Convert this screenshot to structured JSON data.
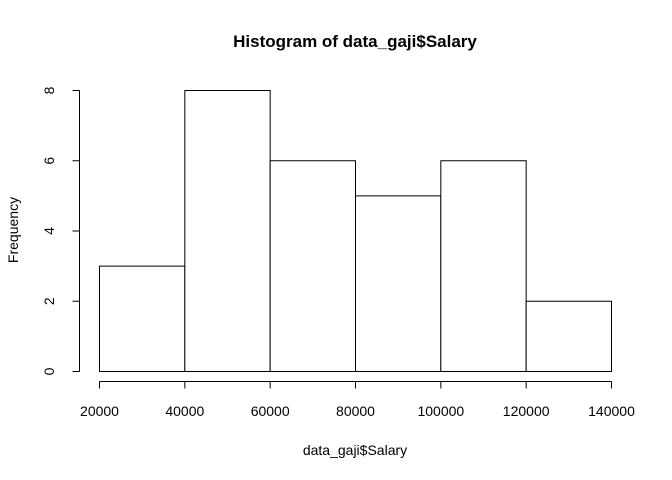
{
  "chart_data": {
    "type": "bar",
    "title": "Histogram of data_gaji$Salary",
    "xlabel": "data_gaji$Salary",
    "ylabel": "Frequency",
    "bins": [
      {
        "start": 20000,
        "end": 40000,
        "count": 3
      },
      {
        "start": 40000,
        "end": 60000,
        "count": 8
      },
      {
        "start": 60000,
        "end": 80000,
        "count": 6
      },
      {
        "start": 80000,
        "end": 100000,
        "count": 5
      },
      {
        "start": 100000,
        "end": 120000,
        "count": 6
      },
      {
        "start": 120000,
        "end": 140000,
        "count": 2
      }
    ],
    "xlim": [
      20000,
      140000
    ],
    "ylim": [
      0,
      8
    ],
    "x_ticks": [
      "20000",
      "40000",
      "60000",
      "80000",
      "100000",
      "120000",
      "140000"
    ],
    "y_ticks": [
      "0",
      "2",
      "4",
      "6",
      "8"
    ],
    "grid": false,
    "colors": {
      "bar_fill": "#ffffff",
      "bar_stroke": "#000000"
    }
  }
}
